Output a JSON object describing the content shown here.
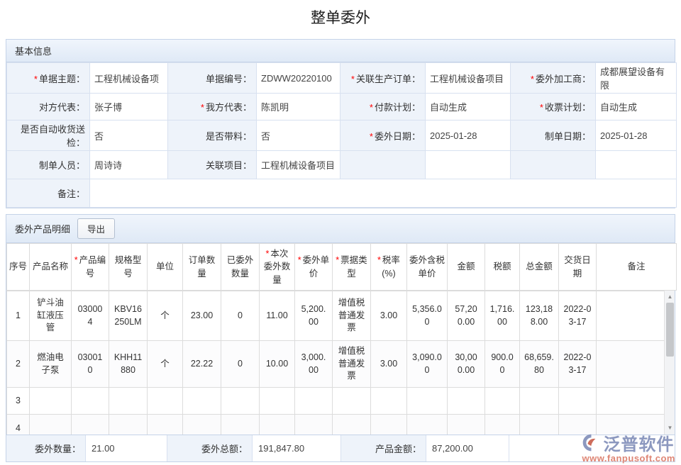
{
  "page_title": "整单委外",
  "basic_info": {
    "section_title": "基本信息",
    "rows": [
      [
        {
          "req": "*",
          "label": "单据主题：",
          "value": "工程机械设备项"
        },
        {
          "req": "",
          "label": "单据编号：",
          "value": "ZDWW20220100"
        },
        {
          "req": "*",
          "label": "关联生产订单：",
          "value": "工程机械设备项目"
        },
        {
          "req": "*",
          "label": "委外加工商：",
          "value": "成都展望设备有限"
        }
      ],
      [
        {
          "req": "",
          "label": "对方代表：",
          "value": "张子博"
        },
        {
          "req": "*",
          "label": "我方代表：",
          "value": "陈凯明"
        },
        {
          "req": "*",
          "label": "付款计划：",
          "value": "自动生成"
        },
        {
          "req": "*",
          "label": "收票计划：",
          "value": "自动生成"
        }
      ],
      [
        {
          "req": "",
          "label": "是否自动收货送检：",
          "value": "否"
        },
        {
          "req": "",
          "label": "是否带料：",
          "value": "否"
        },
        {
          "req": "*",
          "label": "委外日期：",
          "value": "2025-01-28"
        },
        {
          "req": "",
          "label": "制单日期：",
          "value": "2025-01-28"
        }
      ],
      [
        {
          "req": "",
          "label": "制单人员：",
          "value": "周诗诗"
        },
        {
          "req": "",
          "label": "关联项目：",
          "value": "工程机械设备项目"
        },
        {
          "req": "",
          "label": "",
          "value": ""
        },
        {
          "req": "",
          "label": "",
          "value": ""
        }
      ]
    ],
    "remark": {
      "label": "备注：",
      "value": ""
    }
  },
  "products": {
    "section_title": "委外产品明细",
    "export_button": "导出",
    "columns": [
      {
        "req": "",
        "label": "序号"
      },
      {
        "req": "",
        "label": "产品名称"
      },
      {
        "req": "*",
        "label": "产品编号"
      },
      {
        "req": "",
        "label": "规格型号"
      },
      {
        "req": "",
        "label": "单位"
      },
      {
        "req": "",
        "label": "订单数量"
      },
      {
        "req": "",
        "label": "已委外数量"
      },
      {
        "req": "*",
        "label": "本次委外数量"
      },
      {
        "req": "*",
        "label": "委外单价"
      },
      {
        "req": "*",
        "label": "票据类型"
      },
      {
        "req": "*",
        "label": "税率(%)"
      },
      {
        "req": "",
        "label": "委外含税单价"
      },
      {
        "req": "",
        "label": "金额"
      },
      {
        "req": "",
        "label": "税额"
      },
      {
        "req": "",
        "label": "总金额"
      },
      {
        "req": "",
        "label": "交货日期"
      },
      {
        "req": "",
        "label": "备注"
      }
    ],
    "rows": [
      [
        "1",
        "铲斗油缸液压管",
        "030004",
        "KBV16250LM",
        "个",
        "23.00",
        "0",
        "11.00",
        "5,200.00",
        "增值税普通发票",
        "3.00",
        "5,356.00",
        "57,200.00",
        "1,716.00",
        "123,188.00",
        "2022-03-17",
        ""
      ],
      [
        "2",
        "燃油电子泵",
        "030010",
        "KHH11880",
        "个",
        "22.22",
        "0",
        "10.00",
        "3,000.00",
        "增值税普通发票",
        "3.00",
        "3,090.00",
        "30,000.00",
        "900.00",
        "68,659.80",
        "2022-03-17",
        ""
      ],
      [
        "3",
        "",
        "",
        "",
        "",
        "",
        "",
        "",
        "",
        "",
        "",
        "",
        "",
        "",
        "",
        "",
        ""
      ],
      [
        "4",
        "",
        "",
        "",
        "",
        "",
        "",
        "",
        "",
        "",
        "",
        "",
        "",
        "",
        "",
        "",
        ""
      ]
    ],
    "summary": [
      {
        "label": "委外数量：",
        "value": "21.00"
      },
      {
        "label": "委外总额：",
        "value": "191,847.80"
      },
      {
        "label": "产品金额：",
        "value": "87,200.00"
      }
    ]
  },
  "watermark": {
    "brand": "泛普软件",
    "url": "www.fanpusoft.com"
  },
  "colors": {
    "section_border": "#c5d3e8",
    "label_bg": "#eef3fa",
    "required": "#ff0000",
    "header_gradient_top": "#f0f5fc",
    "header_gradient_bottom": "#dfe9f6",
    "brand_text": "#8693bc",
    "brand_url": "#dd7f6d"
  }
}
